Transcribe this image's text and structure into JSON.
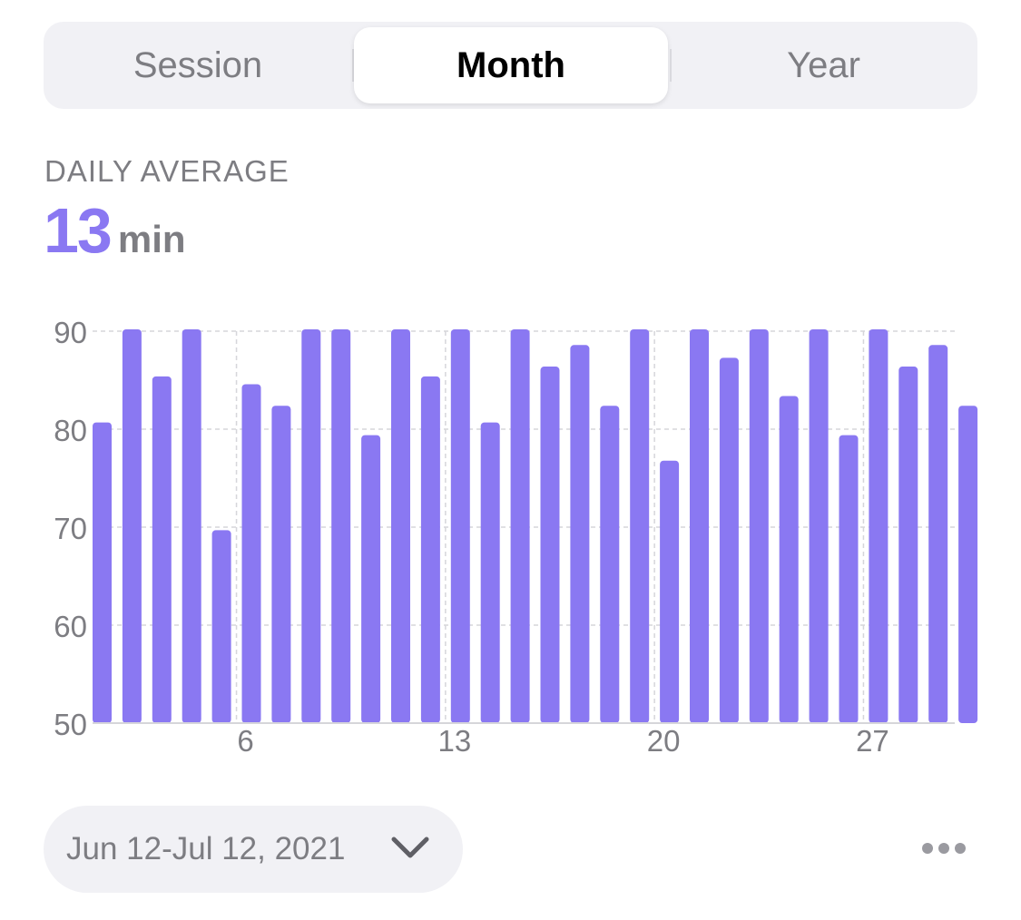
{
  "tabs": [
    {
      "label": "Session"
    },
    {
      "label": "Month"
    },
    {
      "label": "Year"
    }
  ],
  "summary": {
    "label": "DAILY AVERAGE",
    "value": "13",
    "unit": "min"
  },
  "date_range": {
    "label": "Jun 12-Jul 12, 2021"
  },
  "colors": {
    "accent": "#8a78f2",
    "muted_text": "#7d7d82",
    "pill_bg": "#f1f1f5",
    "grid": "#d6d6da"
  },
  "icons": {
    "chevron": "chevron-down-icon",
    "more": "more-icon"
  },
  "chart_data": {
    "type": "bar",
    "x": [
      1,
      2,
      3,
      4,
      5,
      6,
      7,
      8,
      9,
      10,
      11,
      12,
      13,
      14,
      15,
      16,
      17,
      18,
      19,
      20,
      21,
      22,
      23,
      24,
      25,
      26,
      27,
      28,
      29,
      30
    ],
    "x_ticks": [
      6,
      13,
      20,
      27
    ],
    "values": [
      80.5,
      90,
      85.2,
      90,
      69.5,
      84.4,
      82.2,
      90,
      90,
      79.2,
      90,
      85.2,
      90,
      80.5,
      90,
      86.2,
      88.4,
      82.2,
      90,
      76.6,
      90,
      87.1,
      90,
      83.2,
      90,
      79.2,
      90,
      86.2,
      88.4,
      82.2
    ],
    "ylim": [
      50,
      90
    ],
    "y_ticks": [
      50,
      60,
      70,
      80,
      90
    ],
    "grid": true,
    "title": "",
    "xlabel": "",
    "ylabel": ""
  }
}
